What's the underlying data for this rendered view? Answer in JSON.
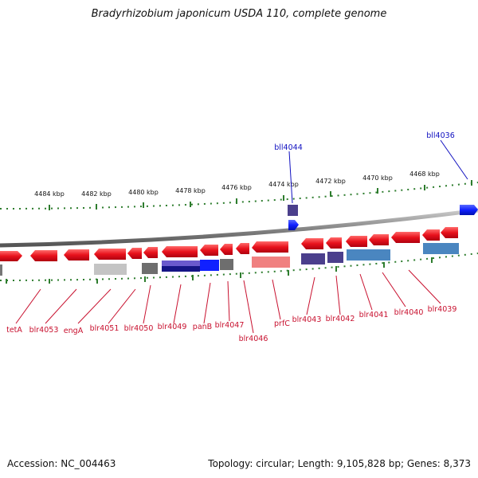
{
  "title": "Bradyrhizobium japonicum USDA 110, complete genome",
  "footer": {
    "accession_label": "Accession:",
    "accession": "NC_004463",
    "topology_label": "Topology:",
    "topology": "circular",
    "length_label": "Length:",
    "length": "9,105,828 bp",
    "genes_label": "Genes:",
    "genes": "8,373"
  },
  "colors": {
    "genome_line": "#888888",
    "tick": "#2e7d2e",
    "forward_gene": "#e8121c",
    "label_red": "#c8102e",
    "label_blue": "#1010c0"
  },
  "scale_labels": [
    "4484 kbp",
    "4482 kbp",
    "4480 kbp",
    "4478 kbp",
    "4476 kbp",
    "4474 kbp",
    "4472 kbp",
    "4470 kbp",
    "4468 kbp"
  ],
  "gene_labels": [
    {
      "name": "tetA",
      "color": "red"
    },
    {
      "name": "blr4053",
      "color": "red"
    },
    {
      "name": "engA",
      "color": "red"
    },
    {
      "name": "blr4051",
      "color": "red"
    },
    {
      "name": "blr4050",
      "color": "red"
    },
    {
      "name": "blr4049",
      "color": "red"
    },
    {
      "name": "panB",
      "color": "red"
    },
    {
      "name": "blr4047",
      "color": "red"
    },
    {
      "name": "blr4046",
      "color": "red"
    },
    {
      "name": "prfC",
      "color": "red"
    },
    {
      "name": "blr4043",
      "color": "red"
    },
    {
      "name": "blr4042",
      "color": "red"
    },
    {
      "name": "blr4041",
      "color": "red"
    },
    {
      "name": "blr4040",
      "color": "red"
    },
    {
      "name": "blr4039",
      "color": "red"
    },
    {
      "name": "bll4044",
      "color": "blue"
    },
    {
      "name": "bll4036",
      "color": "blue"
    }
  ]
}
